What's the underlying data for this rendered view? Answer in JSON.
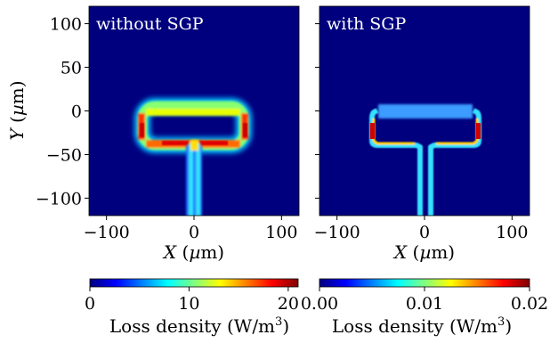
{
  "chart_data": [
    {
      "type": "heatmap",
      "title": "without SGP",
      "xlabel": "X (µm)",
      "ylabel": "Y (µm)",
      "xlim": [
        -120,
        120
      ],
      "ylim": [
        -120,
        120
      ],
      "xticks": [
        -100,
        0,
        100
      ],
      "xtick_labels": [
        "−100",
        "0",
        "100"
      ],
      "yticks": [
        100,
        50,
        0,
        -50,
        -100
      ],
      "ytick_labels": [
        "100",
        "50",
        "0",
        "−50",
        "−100"
      ],
      "colormap": "jet",
      "colorbar": {
        "label": "Loss density (W/m³)",
        "min": 0,
        "max": 21,
        "ticks": [
          0,
          10,
          20
        ],
        "tick_labels": [
          "0",
          "10",
          "20"
        ]
      },
      "background_value": 0,
      "structure": {
        "ring_x": [
          -63,
          63
        ],
        "ring_y": [
          -42,
          8
        ],
        "feed_x": [
          -8,
          8
        ],
        "feed_y": [
          -120,
          -42
        ]
      }
    },
    {
      "type": "heatmap",
      "title": "with SGP",
      "xlabel": "X (µm)",
      "ylabel": "",
      "xlim": [
        -120,
        120
      ],
      "ylim": [
        -120,
        120
      ],
      "xticks": [
        -100,
        0,
        100
      ],
      "xtick_labels": [
        "−100",
        "0",
        "100"
      ],
      "yticks": [
        100,
        50,
        0,
        -50,
        -100
      ],
      "ytick_labels": [],
      "colormap": "jet",
      "colorbar": {
        "label": "Loss density (W/m³)",
        "min": 0.0,
        "max": 0.02,
        "ticks": [
          0.0,
          0.01,
          0.02
        ],
        "tick_labels": [
          "0.00",
          "0.01",
          "0.02"
        ]
      },
      "background_value": 0,
      "structure": {
        "ring_x": [
          -63,
          63
        ],
        "ring_y": [
          -42,
          8
        ],
        "feed_x": [
          -8,
          8
        ],
        "feed_y": [
          -120,
          -42
        ]
      }
    }
  ]
}
